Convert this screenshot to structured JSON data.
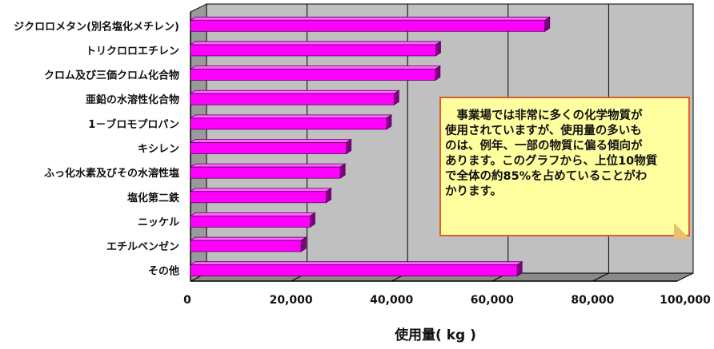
{
  "chart_data": {
    "type": "bar",
    "orientation": "horizontal",
    "categories": [
      "ジクロロメタン(別名塩化メチレン)",
      "トリクロロエチレン",
      "クロム及び三価クロム化合物",
      "亜鉛の水溶性化合物",
      "1－ブロモプロパン",
      "キシレン",
      "ふっ化水素及びその水溶性塩",
      "塩化第二鉄",
      "ニッケル",
      "エチルベンゼン",
      "その他"
    ],
    "values": [
      70500,
      48800,
      48700,
      40500,
      39000,
      31000,
      29800,
      27000,
      23800,
      22000,
      65000
    ],
    "xlabel": "使用量( kg )",
    "ylabel": "",
    "xlim": [
      0,
      100000
    ],
    "xticks": [
      0,
      20000,
      40000,
      60000,
      80000,
      100000
    ],
    "xtick_labels": [
      "0",
      "20,000",
      "40,000",
      "60,000",
      "80,000",
      "100,000"
    ],
    "grid": true,
    "bar_color": "#ff00ff",
    "plot_background": "#c0c0c0",
    "annotation": "事業場では非常に多くの化学物質が使用されていますが、使用量の多いものは、例年、一部の物質に偏る傾向があります。このグラフから、上位10物質で全体の約85%を占めていることがわかります。"
  },
  "note": {
    "text": "　事業場では非常に多くの化学物質が\n使用されていますが、使用量の多いも\nのは、例年、一部の物質に偏る傾向が\nあります。このグラフから、上位10物質\nで全体の約85%を占めていることがわ\nかります。"
  },
  "colors": {
    "bar": "#ff00ff",
    "bar_shadow": "#800080",
    "plot_bg": "#c0c0c0",
    "note_bg": "#ffffa0",
    "note_border": "#e05a2a"
  }
}
